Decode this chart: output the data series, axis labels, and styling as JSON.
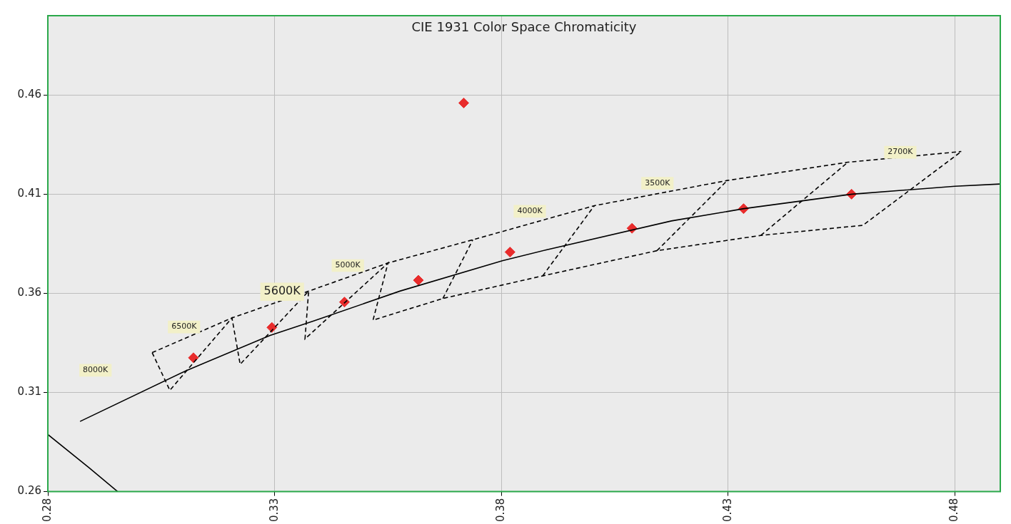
{
  "chart_data": {
    "type": "scatter",
    "title": "CIE 1931 Color Space Chromaticity",
    "xlim": [
      0.28,
      0.49
    ],
    "xticks": [
      0.28,
      0.33,
      0.38,
      0.43,
      0.48
    ],
    "ylim": [
      0.26,
      0.5
    ],
    "yticks": [
      0.26,
      0.31,
      0.36,
      0.41,
      0.46
    ],
    "grid": true,
    "legend": false,
    "series": [
      {
        "type": "line",
        "color": "#000000",
        "line_style": "solid",
        "marker": "none",
        "x": [
          0.2871,
          0.3104,
          0.329,
          0.3387,
          0.3576,
          0.3802,
          0.3899,
          0.4175,
          0.4335,
          0.4573,
          0.48,
          0.4899
        ],
        "values": [
          0.2954,
          0.3209,
          0.3388,
          0.3461,
          0.3611,
          0.3764,
          0.3819,
          0.3965,
          0.4027,
          0.41,
          0.414,
          0.4151
        ]
      },
      {
        "type": "line",
        "color": "#000000",
        "line_style": "solid",
        "marker": "none",
        "x": [
          0.28,
          0.2891,
          0.2954
        ],
        "values": [
          0.2888,
          0.272,
          0.26
        ]
      },
      {
        "type": "line",
        "color": "#000000",
        "line_style": "dashed",
        "marker": "none",
        "x": [
          0.303,
          0.3206,
          0.3375,
          0.355,
          0.3737,
          0.4005,
          0.4298,
          0.4564,
          0.4814
        ],
        "values": [
          0.3301,
          0.3476,
          0.3611,
          0.3753,
          0.387,
          0.4042,
          0.4169,
          0.4261,
          0.4315
        ]
      },
      {
        "type": "line",
        "color": "#000000",
        "line_style": "dashed",
        "marker": "none",
        "x": [
          0.303,
          0.3069,
          0.3206,
          0.3224,
          0.3375,
          0.3367,
          0.355,
          0.3517,
          0.3671,
          0.3891,
          0.4143,
          0.4372,
          0.4597,
          0.4814
        ],
        "values": [
          0.3301,
          0.3111,
          0.3476,
          0.3242,
          0.3611,
          0.337,
          0.3753,
          0.3465,
          0.3574,
          0.3688,
          0.3815,
          0.3892,
          0.3943,
          0.4315
        ]
      },
      {
        "type": "line",
        "color": "#000000",
        "line_style": "dashed",
        "marker": "none",
        "x": [
          0.3671,
          0.3737
        ],
        "values": [
          0.3574,
          0.387
        ]
      },
      {
        "type": "line",
        "color": "#000000",
        "line_style": "dashed",
        "marker": "none",
        "x": [
          0.3891,
          0.4005
        ],
        "values": [
          0.3688,
          0.4042
        ]
      },
      {
        "type": "line",
        "color": "#000000",
        "line_style": "dashed",
        "marker": "none",
        "x": [
          0.4143,
          0.4298
        ],
        "values": [
          0.3815,
          0.4169
        ]
      },
      {
        "type": "line",
        "color": "#000000",
        "line_style": "dashed",
        "marker": "none",
        "x": [
          0.4372,
          0.4564
        ],
        "values": [
          0.3892,
          0.4261
        ]
      },
      {
        "type": "scatter",
        "color": "#e82c2c",
        "marker": "diamond",
        "x": [
          0.3121,
          0.3294,
          0.3454,
          0.3617,
          0.3717,
          0.3819,
          0.4088,
          0.4334,
          0.4572
        ],
        "values": [
          0.3275,
          0.3428,
          0.3556,
          0.3666,
          0.456,
          0.3808,
          0.3928,
          0.4027,
          0.41
        ]
      }
    ],
    "annotations": [
      "8000K",
      "6500K",
      "5600K",
      "5000K",
      "4000K",
      "3500K",
      "2700K"
    ]
  }
}
